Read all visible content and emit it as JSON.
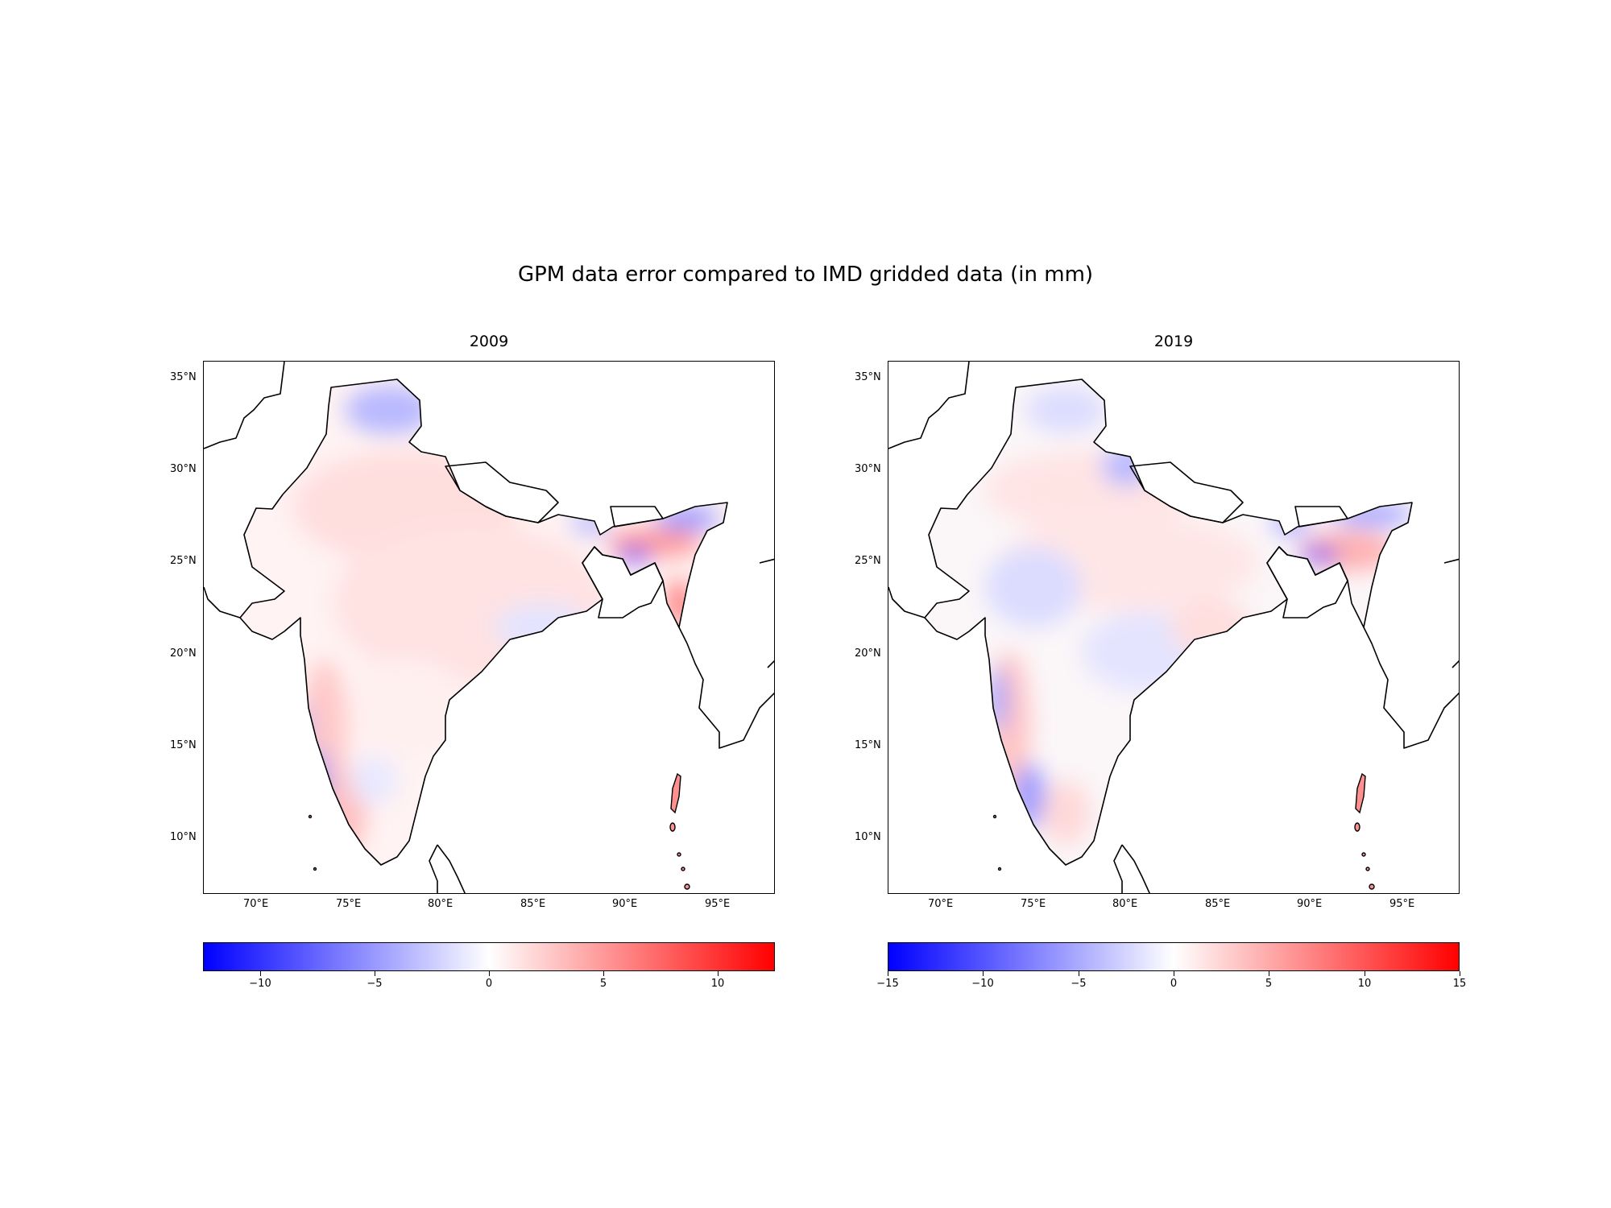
{
  "figure": {
    "title": "GPM data error compared to IMD gridded data (in mm)"
  },
  "maps": [
    {
      "title": "2009",
      "lon_range": [
        67,
        98
      ],
      "lat_range": [
        7,
        36
      ],
      "lon_ticks": [
        "70°E",
        "75°E",
        "80°E",
        "85°E",
        "90°E",
        "95°E"
      ],
      "lat_ticks": [
        "35°N",
        "30°N",
        "25°N",
        "20°N",
        "15°N",
        "10°N"
      ],
      "colorbar": {
        "cmap": "bwr",
        "range": [
          -12.5,
          12.5
        ],
        "ticks": [
          "−10",
          "−5",
          "0",
          "5",
          "10"
        ],
        "tick_values": [
          -10,
          -5,
          0,
          5,
          10
        ]
      }
    },
    {
      "title": "2019",
      "lon_range": [
        67,
        98
      ],
      "lat_range": [
        7,
        36
      ],
      "lon_ticks": [
        "70°E",
        "75°E",
        "80°E",
        "85°E",
        "90°E",
        "95°E"
      ],
      "lat_ticks": [
        "35°N",
        "30°N",
        "25°N",
        "20°N",
        "15°N",
        "10°N"
      ],
      "colorbar": {
        "cmap": "bwr",
        "range": [
          -15,
          15
        ],
        "ticks": [
          "−15",
          "−10",
          "−5",
          "0",
          "5",
          "10",
          "15"
        ],
        "tick_values": [
          -15,
          -10,
          -5,
          0,
          5,
          10,
          15
        ]
      }
    }
  ],
  "colors": {
    "negative": "#0000ff",
    "zero": "#ffffff",
    "positive": "#ff0000",
    "coastline": "#000000"
  }
}
